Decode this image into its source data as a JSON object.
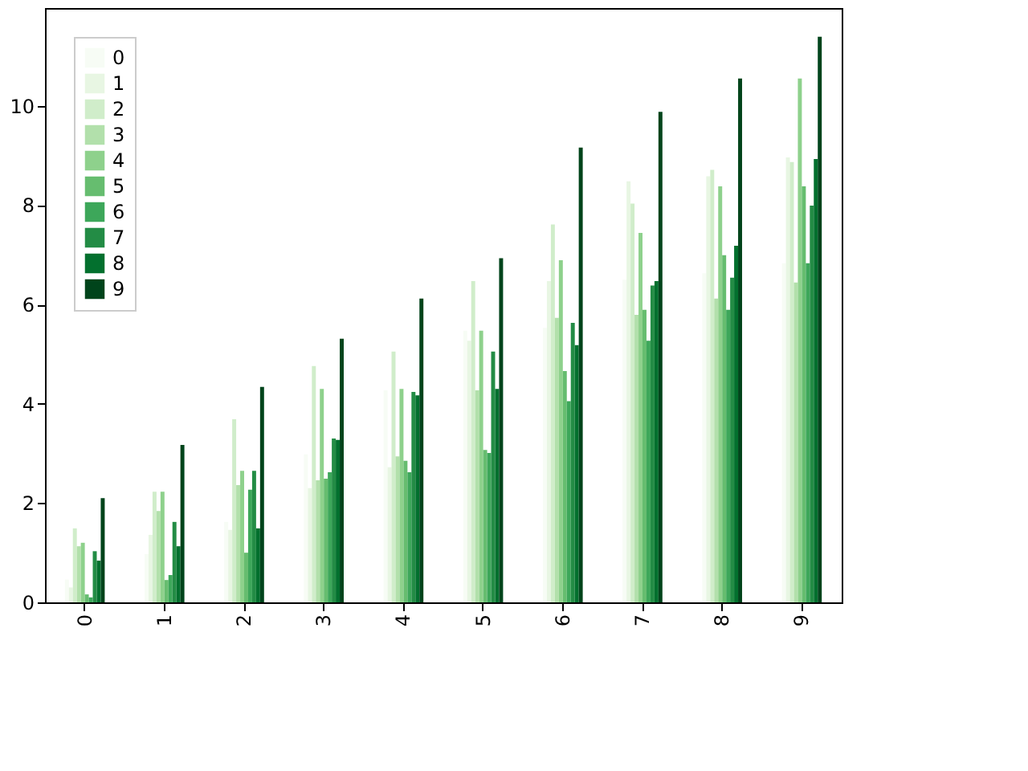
{
  "chart_data": {
    "type": "bar",
    "categories": [
      "0",
      "1",
      "2",
      "3",
      "4",
      "5",
      "6",
      "7",
      "8",
      "9"
    ],
    "series": [
      {
        "name": "0",
        "color": "#f7fcf5",
        "values": [
          0.46,
          0.97,
          1.62,
          2.98,
          4.27,
          5.47,
          5.53,
          6.5,
          6.63,
          6.83
        ]
      },
      {
        "name": "1",
        "color": "#e8f6e3",
        "values": [
          0.3,
          1.36,
          1.46,
          2.3,
          2.72,
          5.27,
          6.47,
          8.48,
          8.58,
          8.96
        ]
      },
      {
        "name": "2",
        "color": "#d0edca",
        "values": [
          1.49,
          2.23,
          3.69,
          4.76,
          5.05,
          6.47,
          7.61,
          8.03,
          8.71,
          8.87
        ]
      },
      {
        "name": "3",
        "color": "#b2e0ab",
        "values": [
          1.13,
          1.84,
          2.36,
          2.46,
          2.94,
          4.27,
          5.73,
          5.79,
          6.12,
          6.44
        ]
      },
      {
        "name": "4",
        "color": "#8ed18c",
        "values": [
          1.2,
          2.23,
          2.65,
          4.3,
          4.3,
          5.47,
          6.89,
          7.44,
          8.38,
          10.55
        ]
      },
      {
        "name": "5",
        "color": "#66bd6f",
        "values": [
          0.16,
          0.45,
          1.0,
          2.49,
          2.85,
          3.07,
          4.66,
          5.89,
          6.99,
          8.38
        ]
      },
      {
        "name": "6",
        "color": "#3da75a",
        "values": [
          0.1,
          0.55,
          2.27,
          2.62,
          2.62,
          3.01,
          4.05,
          5.27,
          5.89,
          6.83
        ]
      },
      {
        "name": "7",
        "color": "#238c45",
        "values": [
          1.03,
          1.62,
          2.65,
          3.3,
          4.24,
          5.05,
          5.63,
          6.38,
          6.54,
          7.99
        ]
      },
      {
        "name": "8",
        "color": "#03702e",
        "values": [
          0.84,
          1.13,
          1.49,
          3.27,
          4.17,
          4.3,
          5.18,
          6.47,
          7.18,
          8.93
        ]
      },
      {
        "name": "9",
        "color": "#00441b",
        "values": [
          2.1,
          3.17,
          4.34,
          5.31,
          6.12,
          6.93,
          9.16,
          9.88,
          10.55,
          11.39
        ]
      }
    ],
    "ylim": [
      0,
      11.97
    ],
    "yticks": [
      0,
      2,
      4,
      6,
      8,
      10
    ],
    "grid": false,
    "legend": "top left"
  }
}
